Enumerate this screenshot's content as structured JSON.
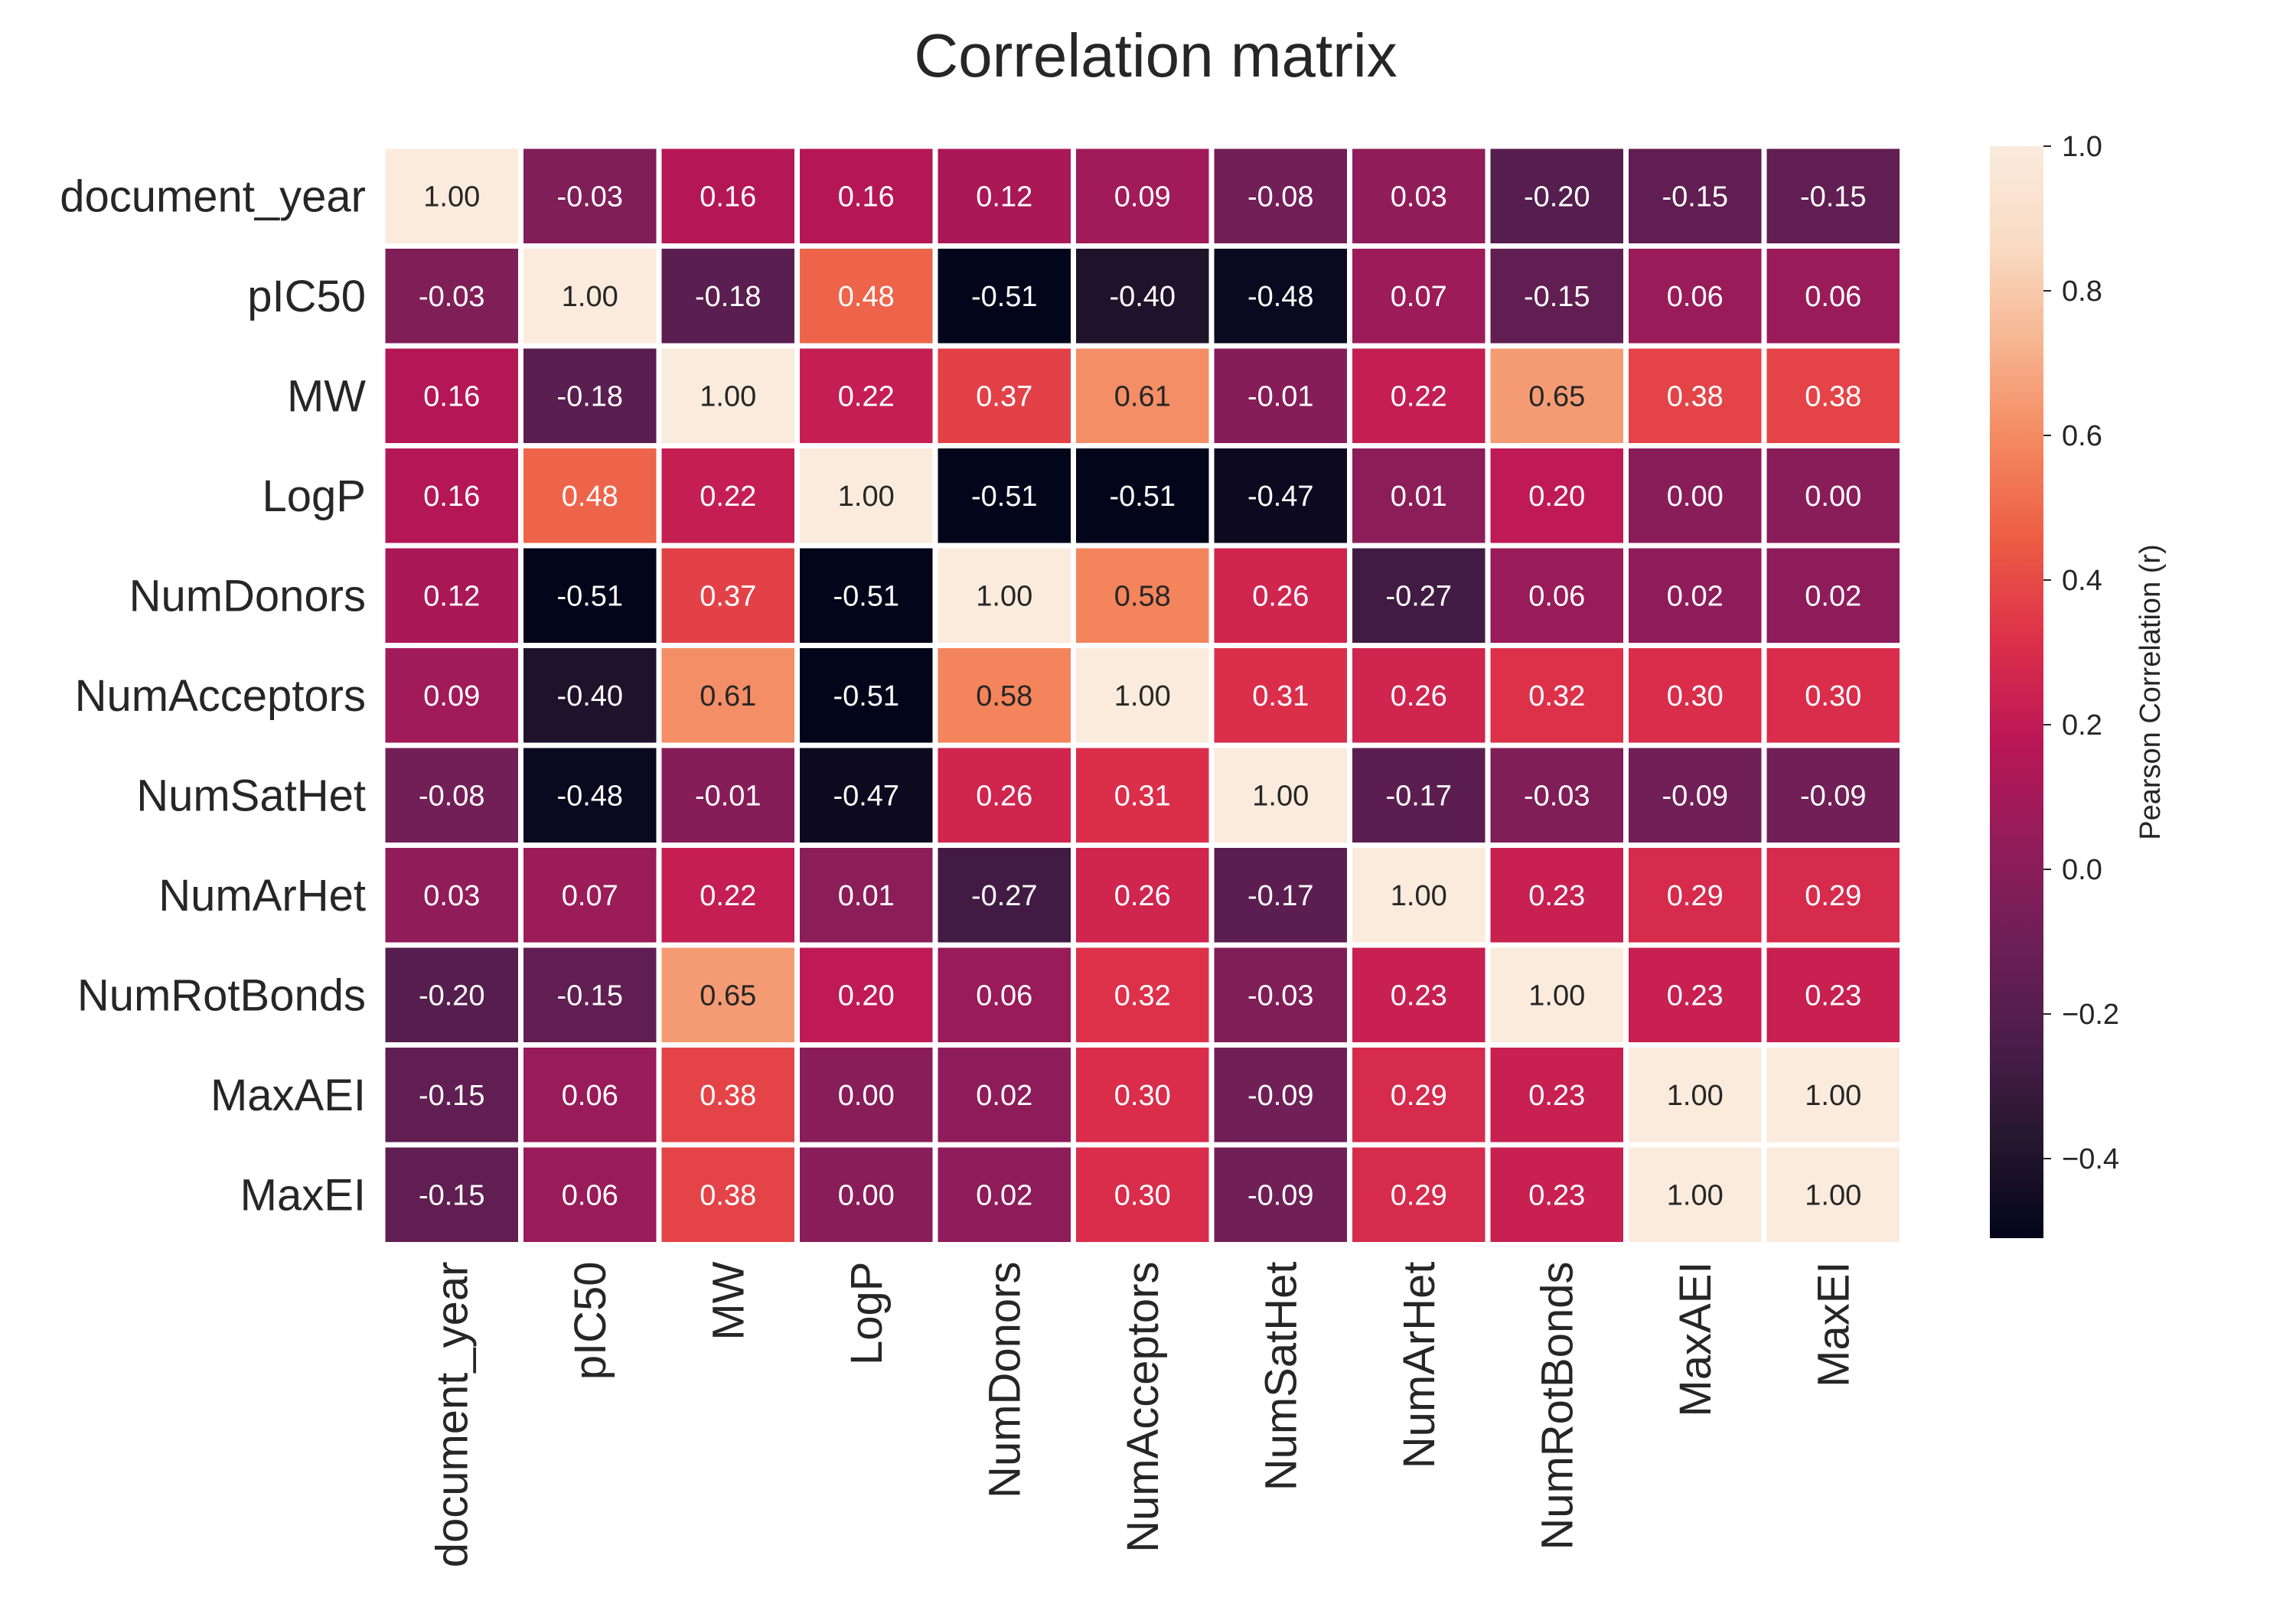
{
  "chart_data": {
    "type": "heatmap",
    "title": "Correlation matrix",
    "row_labels": [
      "document_year",
      "pIC50",
      "MW",
      "LogP",
      "NumDonors",
      "NumAcceptors",
      "NumSatHet",
      "NumArHet",
      "NumRotBonds",
      "MaxAEI",
      "MaxEI"
    ],
    "col_labels": [
      "document_year",
      "pIC50",
      "MW",
      "LogP",
      "NumDonors",
      "NumAcceptors",
      "NumSatHet",
      "NumArHet",
      "NumRotBonds",
      "MaxAEI",
      "MaxEI"
    ],
    "values": [
      [
        1.0,
        -0.03,
        0.16,
        0.16,
        0.12,
        0.09,
        -0.08,
        0.03,
        -0.2,
        -0.15,
        -0.15
      ],
      [
        -0.03,
        1.0,
        -0.18,
        0.48,
        -0.51,
        -0.4,
        -0.48,
        0.07,
        -0.15,
        0.06,
        0.06
      ],
      [
        0.16,
        -0.18,
        1.0,
        0.22,
        0.37,
        0.61,
        -0.01,
        0.22,
        0.65,
        0.38,
        0.38
      ],
      [
        0.16,
        0.48,
        0.22,
        1.0,
        -0.51,
        -0.51,
        -0.47,
        0.01,
        0.2,
        0.0,
        0.0
      ],
      [
        0.12,
        -0.51,
        0.37,
        -0.51,
        1.0,
        0.58,
        0.26,
        -0.27,
        0.06,
        0.02,
        0.02
      ],
      [
        0.09,
        -0.4,
        0.61,
        -0.51,
        0.58,
        1.0,
        0.31,
        0.26,
        0.32,
        0.3,
        0.3
      ],
      [
        -0.08,
        -0.48,
        -0.01,
        -0.47,
        0.26,
        0.31,
        1.0,
        -0.17,
        -0.03,
        -0.09,
        -0.09
      ],
      [
        0.03,
        0.07,
        0.22,
        0.01,
        -0.27,
        0.26,
        -0.17,
        1.0,
        0.23,
        0.29,
        0.29
      ],
      [
        -0.2,
        -0.15,
        0.65,
        0.2,
        0.06,
        0.32,
        -0.03,
        0.23,
        1.0,
        0.23,
        0.23
      ],
      [
        -0.15,
        0.06,
        0.38,
        0.0,
        0.02,
        0.3,
        -0.09,
        0.29,
        0.23,
        1.0,
        1.0
      ],
      [
        -0.15,
        0.06,
        0.38,
        0.0,
        0.02,
        0.3,
        -0.09,
        0.29,
        0.23,
        1.0,
        1.0
      ]
    ],
    "value_format": "0.00",
    "colormap": "rocket",
    "colormap_stops": [
      "#03051a",
      "#26172f",
      "#4c1d4b",
      "#6e1f57",
      "#931c5a",
      "#ba1656",
      "#dc2f4a",
      "#ec5b44",
      "#f4875e",
      "#f6b48f",
      "#f9dbc3",
      "#faebdd"
    ],
    "vmin": -0.51,
    "vmax": 1.0,
    "colorbar": {
      "label": "Pearson Correlation (r)",
      "ticks": [
        1.0,
        0.8,
        0.6,
        0.4,
        0.2,
        0.0,
        -0.2,
        -0.4
      ],
      "tick_labels": [
        "1.0",
        "0.8",
        "0.6",
        "0.4",
        "0.2",
        "0.0",
        "−0.2",
        "−0.4"
      ]
    },
    "grid": false
  }
}
